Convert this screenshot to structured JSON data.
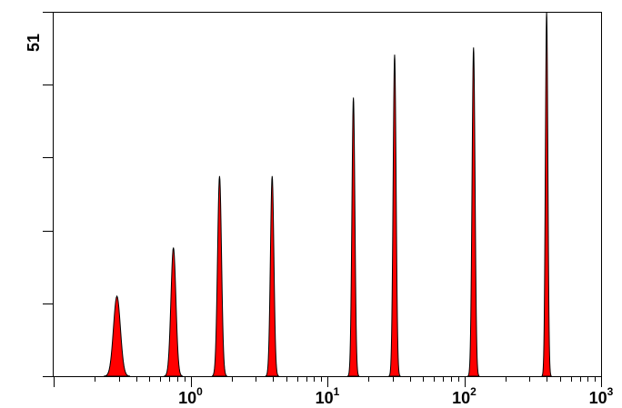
{
  "chart_data": {
    "type": "area",
    "title": "",
    "xlabel": "",
    "ylabel": "",
    "x_scale": "log",
    "xlim": [
      0.1,
      1000
    ],
    "ylim": [
      0,
      51
    ],
    "x_tick_labels": [
      {
        "value": 1,
        "base": "10",
        "exp": "0"
      },
      {
        "value": 10,
        "base": "10",
        "exp": "1"
      },
      {
        "value": 100,
        "base": "10",
        "exp": "2"
      },
      {
        "value": 1000,
        "base": "10",
        "exp": "3"
      }
    ],
    "y_max_label": "51",
    "y_major_ticks": [
      0,
      10.2,
      20.4,
      30.6,
      40.8,
      51
    ],
    "grid": false,
    "legend": "none",
    "fill_color": "#ff0000",
    "stroke_color": "#000000",
    "peaks": [
      {
        "center": 0.29,
        "height": 11.2
      },
      {
        "center": 0.75,
        "height": 18.0
      },
      {
        "center": 1.63,
        "height": 28.0
      },
      {
        "center": 3.95,
        "height": 28.0
      },
      {
        "center": 15.5,
        "height": 39.0
      },
      {
        "center": 31.0,
        "height": 45.0
      },
      {
        "center": 117.0,
        "height": 46.0
      },
      {
        "center": 400.0,
        "height": 51.0
      }
    ]
  }
}
